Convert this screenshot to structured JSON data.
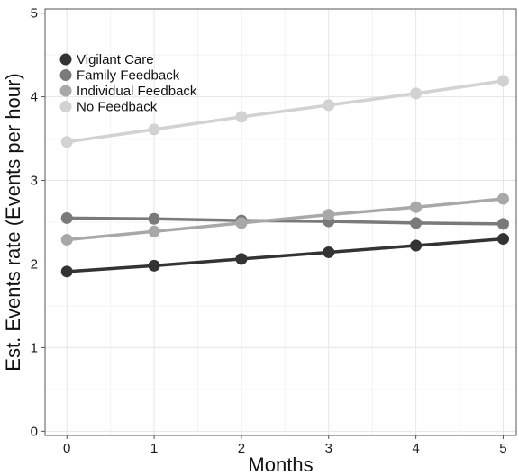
{
  "chart_data": {
    "type": "line",
    "title": "",
    "xlabel": "Months",
    "ylabel": "Est. Events rate (Events per hour)",
    "x": [
      0,
      1,
      2,
      3,
      4,
      5
    ],
    "x_ticks": [
      "0",
      "1",
      "2",
      "3",
      "4",
      "5"
    ],
    "y_ticks": [
      "0",
      "1",
      "2",
      "3",
      "4",
      "5"
    ],
    "xlim": [
      -0.25,
      5.15
    ],
    "ylim": [
      -0.05,
      5.05
    ],
    "grid": true,
    "legend_position": "top-left",
    "series": [
      {
        "name": "Vigilant Care",
        "color": "#333333",
        "values": [
          1.91,
          1.98,
          2.06,
          2.14,
          2.22,
          2.3
        ]
      },
      {
        "name": "Family Feedback",
        "color": "#7a7a7a",
        "values": [
          2.55,
          2.54,
          2.52,
          2.51,
          2.49,
          2.48
        ]
      },
      {
        "name": "Individual Feedback",
        "color": "#a8a8a8",
        "values": [
          2.29,
          2.39,
          2.49,
          2.59,
          2.68,
          2.78
        ]
      },
      {
        "name": "No Feedback",
        "color": "#d2d2d2",
        "values": [
          3.46,
          3.61,
          3.76,
          3.9,
          4.04,
          4.19
        ]
      }
    ]
  }
}
